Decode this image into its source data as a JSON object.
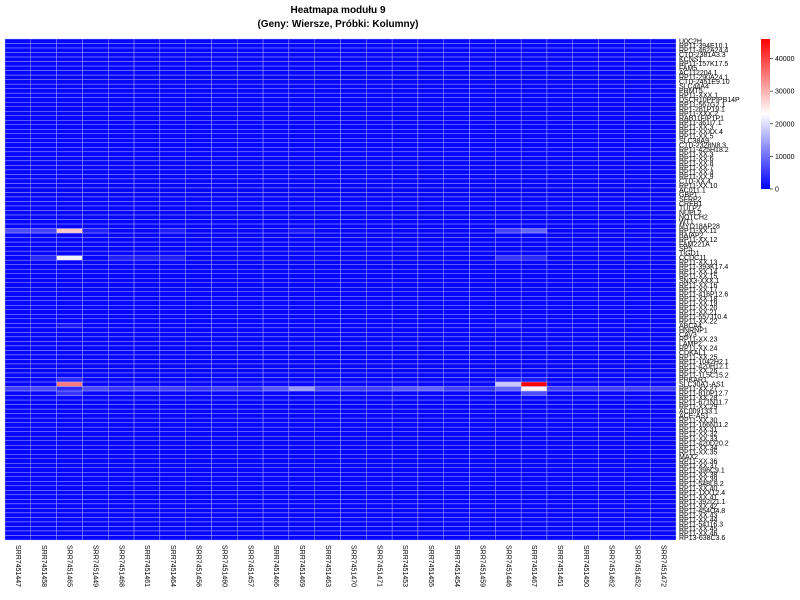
{
  "chart_data": {
    "type": "heatmap",
    "title": "Heatmapa modułu 9",
    "subtitle": "(Geny: Wiersze, Próbki: Kolumny)",
    "columns": [
      "SRR7451447",
      "SRR7451458",
      "SRR7451465",
      "SRR7451449",
      "SRR7451468",
      "SRR7451461",
      "SRR7451464",
      "SRR7451456",
      "SRR7451460",
      "SRR7451457",
      "SRR7451466",
      "SRR7451469",
      "SRR7451463",
      "SRR7451470",
      "SRR7451471",
      "SRR7451453",
      "SRR7451455",
      "SRR7451454",
      "SRR7451459",
      "SRR7451446",
      "SRR7451467",
      "SRR7451451",
      "SRR7451450",
      "SRR7451462",
      "SRR7451452",
      "SRR7451472"
    ],
    "row_labels": [
      "U0C2H",
      "RP11-394E10.1",
      "RP11-462A24.4",
      "CTD-2381A3.3",
      "KCNS1",
      "RP11-157K17.5",
      "FAM5",
      "AC112204.1",
      "RP11-290A24.1",
      "CTD-2451E9.10",
      "SLC44A4",
      "PRMT5",
      "RP11-XXX.1",
      "DSCR10PPIPB14P",
      "RP11-567G2.1",
      "RP1-281P19.1",
      "RP11-XXX.2",
      "RAB11FIP1P1",
      "RP11-361I7.1",
      "RP11-XX.3",
      "RP11-XXXX.4",
      "RP11-XX.5",
      "SLC38A9",
      "CTD-2328N8.3",
      "RP11-425H18.2",
      "RP11-XX.3",
      "RP11-XX.6",
      "RP11-XX.8",
      "RP11-XX.7",
      "RP11-XX.4",
      "RP11-XX.9",
      "CTD-XX.4",
      "RP11-XX.10",
      "AC011.1",
      "GBP1",
      "SFRP2",
      "CREB1",
      "TULP2",
      "NUPL2",
      "NOTCH2",
      "WT1",
      "MYO18AP28",
      "RP11-XX.11",
      "BAIAP2",
      "RP11-XX.12",
      "FAM221A",
      "SP5",
      "TIGD1",
      "CCDC11",
      "RP11-XX.13",
      "RP11-393K17.4",
      "RP11-XX.14",
      "RP11-XX.15",
      "SNX3-XXX.1",
      "RP11-XX.16",
      "RP11-XX.17",
      "RP11-416P12.6",
      "RP11-XX.18",
      "RP11-XX.19",
      "RP11-XX.20",
      "RP11-XX.21",
      "RP11-557J10.4",
      "RP11-XX.22",
      "ABCA4",
      "HNRNP1",
      "CAV3",
      "RP11-XX.23",
      "LAMP2",
      "RP11-XX.24",
      "CDKAL1",
      "RP11-XX.25",
      "RP11-1042H2.1",
      "RP11-420H12.1",
      "RP11-XX.26",
      "RP11-1L5C15.2",
      "PRKAR1",
      "SLC30A1-AS1",
      "RP11-XX.27",
      "RP11-810P12.7",
      "RP11-XX.28",
      "RP11-671N11.7",
      "RP11-XX.29",
      "AC009133.1",
      "ACE-AS1",
      "RP11-XX.30",
      "RP11-166N11.2",
      "RP11-XX.31",
      "RP11-XX.32",
      "RP11-XX.33",
      "RP11-420D20.2",
      "RP11-XX.34",
      "RP11-XX.35",
      "MAX2",
      "RP11-XX.36",
      "RP11-XX.37",
      "RP11-396C9.1",
      "RP11-XX.38",
      "RP11-XX.39",
      "RP11-548L8.2",
      "RP11-XX.40",
      "RP11-1XX12.4",
      "RP11-XX.41",
      "RP11-392I21.1",
      "RP11-XX.42",
      "RP11-454O4.8",
      "RP11-XX.43",
      "RP11-XX.44",
      "RP11-54116.3",
      "RP11-XX.45",
      "RP11-XX.46",
      "RP13-638C3.6"
    ],
    "base_value": 600,
    "highlights": [
      {
        "row": 42,
        "values": {
          "0": 7000,
          "1": 6000,
          "2": 28000,
          "3": 3000,
          "6": 2500,
          "11": 2000,
          "19": 6000,
          "20": 9000
        }
      },
      {
        "row": 48,
        "values": {
          "1": 4000,
          "2": 22000,
          "4": 3000,
          "5": 3000,
          "6": 3000,
          "19": 5000,
          "20": 4000
        }
      },
      {
        "row": 63,
        "values": {
          "2": 2500,
          "19": 2000
        }
      },
      {
        "row": 75,
        "values": {
          "2": 4000,
          "19": 3500,
          "20": 2500
        }
      },
      {
        "row": 76,
        "values": {
          "2": 35000,
          "19": 18000,
          "20": 46000
        }
      },
      {
        "row": 77,
        "values": {
          "0": 6000,
          "1": 7000,
          "2": 4000,
          "3": 7000,
          "4": 5000,
          "5": 6000,
          "6": 6000,
          "7": 5000,
          "8": 6000,
          "9": 5000,
          "10": 8000,
          "11": 14000,
          "12": 7000,
          "13": 6000,
          "14": 6000,
          "15": 8000,
          "16": 9000,
          "17": 6000,
          "18": 5000,
          "19": 9000,
          "20": 24000,
          "21": 6000,
          "22": 6000,
          "23": 6000,
          "24": 6000,
          "25": 6000
        }
      },
      {
        "row": 78,
        "values": {
          "2": 5000,
          "20": 7000
        }
      }
    ],
    "colorbar": {
      "min": 0,
      "max": 46000,
      "ticks": [
        0,
        10000,
        20000,
        30000,
        40000
      ],
      "colors": [
        "#0000ff",
        "#ffffff",
        "#ff0000"
      ]
    }
  }
}
